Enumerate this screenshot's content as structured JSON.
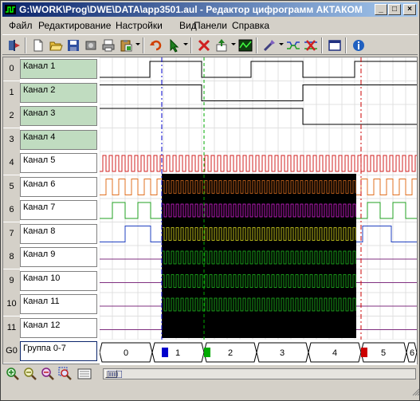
{
  "window": {
    "title": "G:\\WORK\\Prog\\DWE\\DATA\\app3501.aul - Редактор цифрограмм АКТАКОМ",
    "minimize": "_",
    "maximize": "□",
    "close": "×"
  },
  "menu": [
    "Файл",
    "Редактирование",
    "Настройки",
    "Вид",
    "Панели",
    "Справка"
  ],
  "toolbar": [
    "exit-icon",
    "new-icon",
    "open-icon",
    "save-icon",
    "disk-icon",
    "print-icon",
    "paste-icon",
    "undo-icon",
    "pointer-icon",
    "delete-icon",
    "insert-icon",
    "chart-icon",
    "wizard-icon",
    "channels-icon",
    "cut-channels-icon",
    "window-icon",
    "info-icon"
  ],
  "channels": [
    {
      "num": "0",
      "label": "Канал 1",
      "active": true
    },
    {
      "num": "1",
      "label": "Канал 2",
      "active": true
    },
    {
      "num": "2",
      "label": "Канал 3",
      "active": true
    },
    {
      "num": "3",
      "label": "Канал 4",
      "active": true
    },
    {
      "num": "4",
      "label": "Канал 5",
      "active": false
    },
    {
      "num": "5",
      "label": "Канал 6",
      "active": false
    },
    {
      "num": "6",
      "label": "Канал 7",
      "active": false
    },
    {
      "num": "7",
      "label": "Канал 8",
      "active": false
    },
    {
      "num": "8",
      "label": "Канал 9",
      "active": false
    },
    {
      "num": "9",
      "label": "Канал 10",
      "active": false
    },
    {
      "num": "10",
      "label": "Канал 11",
      "active": false
    },
    {
      "num": "11",
      "label": "Канал 12",
      "active": false
    }
  ],
  "group": {
    "num": "G0",
    "label": "Группа 0-7",
    "values": [
      "0",
      "1",
      "2",
      "3",
      "4",
      "5",
      "6"
    ]
  },
  "markers": [
    "blue",
    "green",
    "red"
  ],
  "zoom_tools": [
    "zoom-in-icon",
    "zoom-out-icon",
    "zoom-fit-icon",
    "zoom-area-icon",
    "zoom-all-icon"
  ],
  "colors": {
    "accent_title": "#0a246a",
    "active_channel": "#c0dcc0",
    "marker_blue": "#0000cc",
    "marker_green": "#00aa00",
    "marker_red": "#cc0000"
  }
}
